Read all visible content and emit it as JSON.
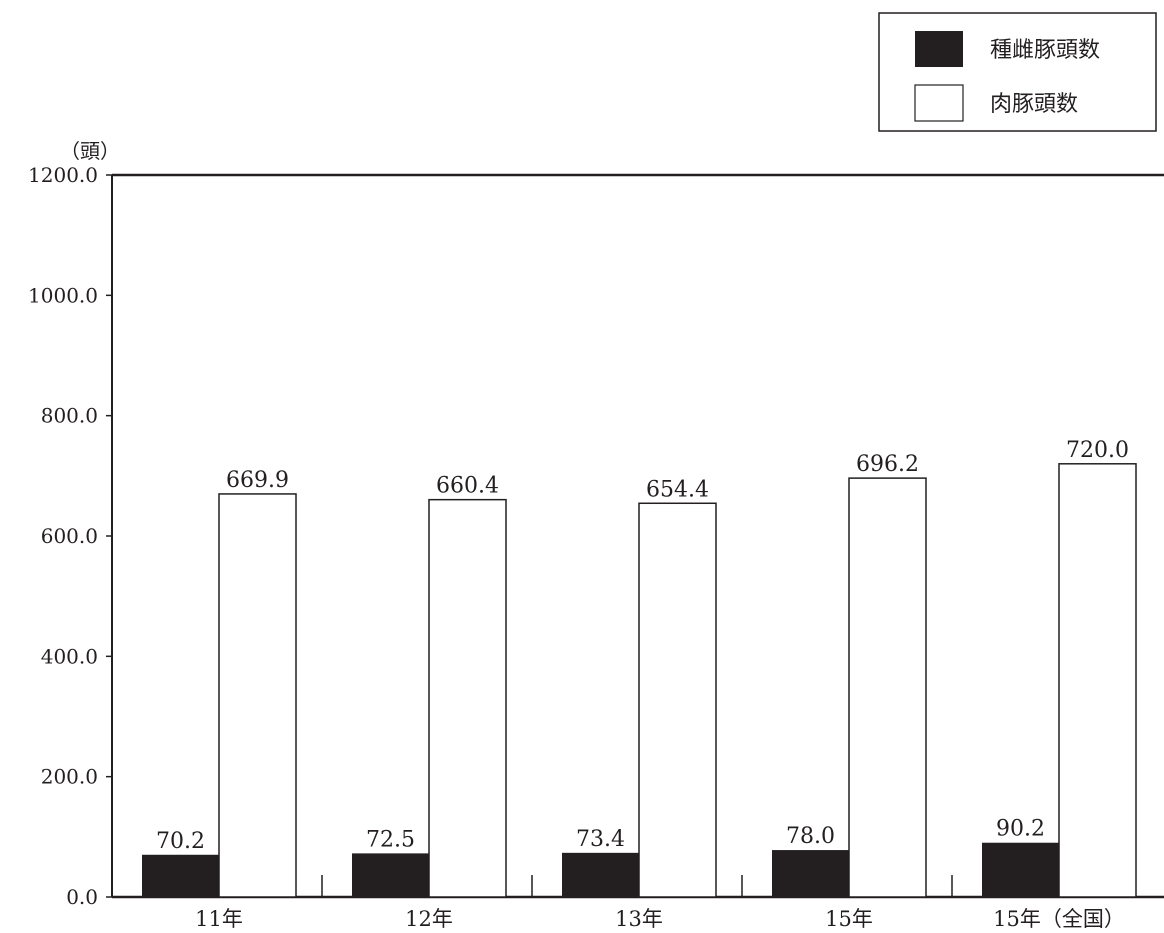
{
  "chart_data": {
    "type": "bar",
    "title": "",
    "xlabel": "",
    "ylabel": "（頭）",
    "ylim": [
      0,
      1200
    ],
    "yticks": [
      "0.0",
      "200.0",
      "400.0",
      "600.0",
      "800.0",
      "1000.0",
      "1200.0"
    ],
    "categories": [
      "11年",
      "12年",
      "13年",
      "15年",
      "15年（全国）"
    ],
    "series": [
      {
        "name": "種雌豚頭数",
        "color": "#231f20",
        "values": [
          70.2,
          72.5,
          73.4,
          78.0,
          90.2
        ],
        "labels": [
          "70.2",
          "72.5",
          "73.4",
          "78.0",
          "90.2"
        ]
      },
      {
        "name": "肉豚頭数",
        "color": "#ffffff",
        "values": [
          669.9,
          660.4,
          654.4,
          696.2,
          720.0
        ],
        "labels": [
          "669.9",
          "660.4",
          "654.4",
          "696.2",
          "720.0"
        ]
      }
    ],
    "grid": false,
    "legend_position": "top-right"
  }
}
